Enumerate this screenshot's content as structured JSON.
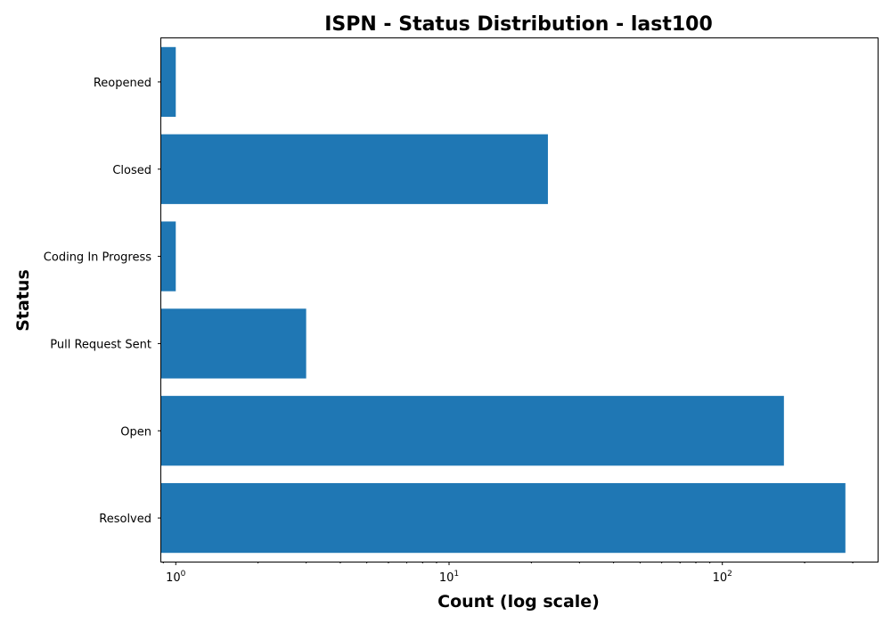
{
  "chart_data": {
    "type": "bar",
    "orientation": "horizontal",
    "title": "ISPN - Status Distribution - last100",
    "xlabel": "Count (log scale)",
    "ylabel": "Status",
    "x_scale": "log",
    "xlim": [
      0.885,
      370
    ],
    "categories": [
      "Resolved",
      "Open",
      "Pull Request Sent",
      "Coding In Progress",
      "Closed",
      "Reopened"
    ],
    "values": [
      282,
      168,
      3,
      1,
      23,
      1
    ],
    "x_ticks": [
      {
        "value": 1,
        "base": "10",
        "exp": "0"
      },
      {
        "value": 10,
        "base": "10",
        "exp": "1"
      },
      {
        "value": 100,
        "base": "10",
        "exp": "2"
      }
    ],
    "bar_color": "#1f77b4",
    "grid": false,
    "legend": "none"
  }
}
